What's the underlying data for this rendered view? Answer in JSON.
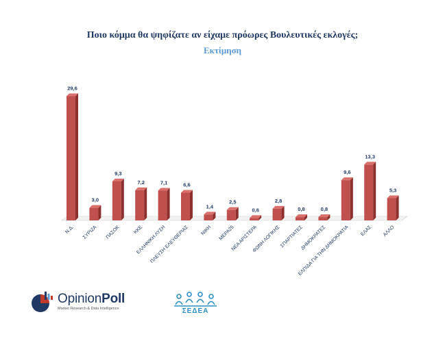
{
  "header": {
    "title": "Ποιο κόμμα θα ψηφίζατε αν είχαμε πρόωρες Βουλευτικές εκλογές;",
    "subtitle": "Εκτίμηση"
  },
  "chart_data": {
    "type": "bar",
    "title": "Ποιο κόμμα θα ψηφίζατε αν είχαμε πρόωρες Βουλευτικές εκλογές;",
    "subtitle": "Εκτίμηση",
    "categories": [
      "Ν.Δ.",
      "ΣΥΡΙΖΑ",
      "ΠΑΣΟΚ",
      "ΚΚΕ",
      "ΕΛΛΗΝΙΚΗ ΛΥΣΗ",
      "ΠΛΕΥΣΗ ΕΛΕΥΘΕΡΙΑΣ",
      "ΝΙΚΗ",
      "ΜΕΡΑ25",
      "ΝΕΑ ΑΡΙΣΤΕΡΑ",
      "ΦΩΝΗ ΛΟΓΙΚΗΣ",
      "ΣΠΑΡΤΙΑΤΕΣ",
      "ΔΗΜΟΚΡΑΤΕΣ",
      "ΕΛΠΙΔΑ ΓΙΑ ΤΗΝ ΔΗΜΟΚΡΑΤΙΑ",
      "ΕΛΑΣ",
      "ΑΛΛΟ"
    ],
    "values": [
      29.6,
      3.0,
      9.3,
      7.2,
      7.1,
      6.6,
      1.4,
      2.5,
      0.6,
      2.8,
      0.8,
      0.8,
      9.6,
      13.3,
      5.3
    ],
    "value_labels": [
      "29,6",
      "3,0",
      "9,3",
      "7,2",
      "7,1",
      "6,6",
      "1,4",
      "2,5",
      "0,6",
      "2,8",
      "0,8",
      "0,8",
      "9,6",
      "13,3",
      "5,3"
    ],
    "ylim": [
      0,
      30
    ],
    "grid": false,
    "legend": "none",
    "bar_color": "#c0504d"
  },
  "footer": {
    "logo_left": {
      "name_a": "Opinion",
      "name_b": "Poll",
      "tagline": "Market Research & Data Intelligence"
    },
    "logo_right": {
      "name": "ΣΕΔΕΑ"
    }
  },
  "colors": {
    "title": "#1f3864",
    "subtitle": "#5b9bd5",
    "bar_front": "#c0504d",
    "bar_side": "#8c2f2d",
    "bar_top": "#d9706c"
  }
}
